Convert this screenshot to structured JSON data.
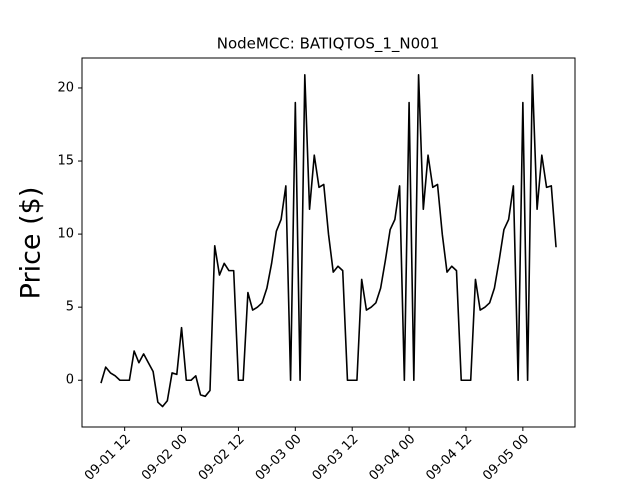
{
  "chart_data": {
    "type": "line",
    "title": "NodeMCC: BATIQTOS_1_N001",
    "y_label": "Price ($)",
    "x": [
      "09-01 07",
      "09-01 08",
      "09-01 09",
      "09-01 10",
      "09-01 11",
      "09-01 12",
      "09-01 13",
      "09-01 14",
      "09-01 15",
      "09-01 16",
      "09-01 17",
      "09-01 18",
      "09-01 19",
      "09-01 20",
      "09-01 21",
      "09-01 22",
      "09-01 23",
      "09-02 00",
      "09-02 01",
      "09-02 02",
      "09-02 03",
      "09-02 04",
      "09-02 05",
      "09-02 06",
      "09-02 07",
      "09-02 08",
      "09-02 09",
      "09-02 10",
      "09-02 11",
      "09-02 12",
      "09-02 13",
      "09-02 14",
      "09-02 15",
      "09-02 16",
      "09-02 17",
      "09-02 18",
      "09-02 19",
      "09-02 20",
      "09-02 21",
      "09-02 22",
      "09-02 23",
      "09-03 00",
      "09-03 01",
      "09-03 02",
      "09-03 03",
      "09-03 04",
      "09-03 05",
      "09-03 06",
      "09-03 07",
      "09-03 08",
      "09-03 09",
      "09-03 10",
      "09-03 11",
      "09-03 12",
      "09-03 13",
      "09-03 14",
      "09-03 15",
      "09-03 16",
      "09-03 17",
      "09-03 18",
      "09-03 19",
      "09-03 20",
      "09-03 21",
      "09-03 22",
      "09-03 23",
      "09-04 00",
      "09-04 01",
      "09-04 02",
      "09-04 03",
      "09-04 04",
      "09-04 05",
      "09-04 06",
      "09-04 07",
      "09-04 08",
      "09-04 09",
      "09-04 10",
      "09-04 11",
      "09-04 12",
      "09-04 13",
      "09-04 14",
      "09-04 15",
      "09-04 16",
      "09-04 17",
      "09-04 18",
      "09-04 19",
      "09-04 20",
      "09-04 21",
      "09-04 22",
      "09-04 23",
      "09-05 00",
      "09-05 01",
      "09-05 02",
      "09-05 03",
      "09-05 04",
      "09-05 05",
      "09-05 06",
      "09-05 07"
    ],
    "series": [
      {
        "color": "#000000",
        "values": [
          -0.2,
          0.9,
          0.5,
          0.3,
          0.0,
          0.0,
          0.0,
          2.0,
          1.2,
          1.8,
          1.2,
          0.6,
          -1.5,
          -1.8,
          -1.4,
          0.5,
          0.4,
          3.6,
          0.0,
          0.0,
          0.3,
          -1.0,
          -1.1,
          -0.7,
          9.2,
          7.2,
          8.0,
          7.5,
          7.5,
          0.0,
          0.0,
          6.0,
          4.8,
          5.0,
          5.3,
          6.3,
          8.0,
          10.2,
          11.0,
          13.3,
          0.0,
          19.0,
          0.0,
          20.9,
          11.7,
          15.4,
          13.2,
          13.4,
          10.0,
          7.4,
          7.8,
          7.5,
          0.0,
          0.0,
          0.0,
          6.9,
          4.8,
          5.0,
          5.3,
          6.3,
          8.2,
          10.3,
          11.0,
          13.3,
          0.0,
          19.0,
          0.0,
          20.9,
          11.7,
          15.4,
          13.2,
          13.4,
          10.0,
          7.4,
          7.8,
          7.5,
          0.0,
          0.0,
          0.0,
          6.9,
          4.8,
          5.0,
          5.3,
          6.3,
          8.2,
          10.3,
          11.0,
          13.3,
          0.0,
          19.0,
          0.0,
          20.9,
          11.7,
          15.4,
          13.2,
          13.3,
          9.1
        ]
      }
    ],
    "xlim": [
      "09-01 03",
      "09-05 11"
    ],
    "xticks": [
      "09-01 12",
      "09-02 00",
      "09-02 12",
      "09-03 00",
      "09-03 12",
      "09-04 00",
      "09-04 12",
      "09-05 00"
    ],
    "ylim": [
      -3.2,
      22.05
    ],
    "yticks": [
      0,
      5,
      10,
      15,
      20
    ]
  }
}
